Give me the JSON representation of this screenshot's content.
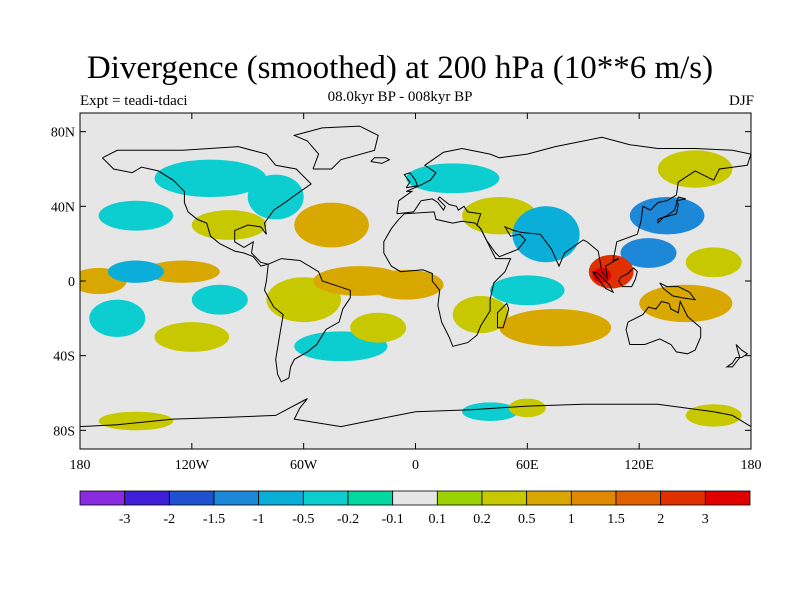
{
  "title": "Divergence (smoothed) at 200 hPa (10**6 m/s)",
  "subtitle": "08.0kyr BP - 008kyr BP",
  "experiment": "Expt = teadi-tdaci",
  "season": "DJF",
  "map": {
    "projection": "cylindrical-equidistant",
    "lon_range": [
      -180,
      180
    ],
    "lat_range": [
      -90,
      90
    ],
    "background_color": "#e6e6e6",
    "lat_ticks": [
      {
        "value": 80,
        "label": "80N"
      },
      {
        "value": 40,
        "label": "40N"
      },
      {
        "value": 0,
        "label": "0"
      },
      {
        "value": -40,
        "label": "40S"
      },
      {
        "value": -80,
        "label": "80S"
      }
    ],
    "lon_ticks": [
      {
        "value": -180,
        "label": "180"
      },
      {
        "value": -120,
        "label": "120W"
      },
      {
        "value": -60,
        "label": "60W"
      },
      {
        "value": 0,
        "label": "0"
      },
      {
        "value": 60,
        "label": "60E"
      },
      {
        "value": 120,
        "label": "120E"
      },
      {
        "value": 180,
        "label": "180"
      }
    ],
    "anomalies": [
      {
        "lon": 105,
        "lat": 5,
        "rlon": 12,
        "rlat": 9,
        "v": 2.2
      },
      {
        "lon": 100,
        "lat": 3,
        "rlon": 5,
        "rlat": 4,
        "v": 3.2
      },
      {
        "lon": 125,
        "lat": 15,
        "rlon": 15,
        "rlat": 8,
        "v": -1.2
      },
      {
        "lon": 135,
        "lat": 35,
        "rlon": 20,
        "rlat": 10,
        "v": -1.3
      },
      {
        "lon": 145,
        "lat": -12,
        "rlon": 25,
        "rlat": 10,
        "v": 0.6
      },
      {
        "lon": 70,
        "lat": 25,
        "rlon": 18,
        "rlat": 15,
        "v": -0.6
      },
      {
        "lon": 45,
        "lat": 35,
        "rlon": 20,
        "rlat": 10,
        "v": 0.4
      },
      {
        "lon": 60,
        "lat": -5,
        "rlon": 20,
        "rlat": 8,
        "v": -0.5
      },
      {
        "lon": 35,
        "lat": -18,
        "rlon": 15,
        "rlat": 10,
        "v": 0.4
      },
      {
        "lon": 75,
        "lat": -25,
        "rlon": 30,
        "rlat": 10,
        "v": 0.5
      },
      {
        "lon": -30,
        "lat": 0,
        "rlon": 25,
        "rlat": 8,
        "v": 0.6
      },
      {
        "lon": -5,
        "lat": -2,
        "rlon": 20,
        "rlat": 8,
        "v": 0.5
      },
      {
        "lon": -60,
        "lat": -10,
        "rlon": 20,
        "rlat": 12,
        "v": 0.4
      },
      {
        "lon": -45,
        "lat": 30,
        "rlon": 20,
        "rlat": 12,
        "v": 0.5
      },
      {
        "lon": -75,
        "lat": 45,
        "rlon": 15,
        "rlat": 12,
        "v": -0.4
      },
      {
        "lon": -125,
        "lat": 5,
        "rlon": 20,
        "rlat": 6,
        "v": 0.5
      },
      {
        "lon": -150,
        "lat": 5,
        "rlon": 15,
        "rlat": 6,
        "v": -0.8
      },
      {
        "lon": -170,
        "lat": 0,
        "rlon": 15,
        "rlat": 7,
        "v": 0.5
      },
      {
        "lon": -160,
        "lat": -20,
        "rlon": 15,
        "rlat": 10,
        "v": -0.4
      },
      {
        "lon": -105,
        "lat": -10,
        "rlon": 15,
        "rlat": 8,
        "v": -0.5
      },
      {
        "lon": -120,
        "lat": -30,
        "rlon": 20,
        "rlat": 8,
        "v": 0.4
      },
      {
        "lon": -40,
        "lat": -35,
        "rlon": 25,
        "rlat": 8,
        "v": -0.3
      },
      {
        "lon": -20,
        "lat": -25,
        "rlon": 15,
        "rlat": 8,
        "v": 0.3
      },
      {
        "lon": 20,
        "lat": 55,
        "rlon": 25,
        "rlat": 8,
        "v": -0.3
      },
      {
        "lon": -110,
        "lat": 55,
        "rlon": 30,
        "rlat": 10,
        "v": -0.3
      },
      {
        "lon": -150,
        "lat": 35,
        "rlon": 20,
        "rlat": 8,
        "v": -0.3
      },
      {
        "lon": -100,
        "lat": 30,
        "rlon": 20,
        "rlat": 8,
        "v": 0.3
      },
      {
        "lon": 150,
        "lat": 60,
        "rlon": 20,
        "rlat": 10,
        "v": 0.3
      },
      {
        "lon": 40,
        "lat": -70,
        "rlon": 15,
        "rlat": 5,
        "v": -0.3
      },
      {
        "lon": 60,
        "lat": -68,
        "rlon": 10,
        "rlat": 5,
        "v": 0.3
      },
      {
        "lon": 160,
        "lat": -72,
        "rlon": 15,
        "rlat": 6,
        "v": 0.3
      },
      {
        "lon": -150,
        "lat": -75,
        "rlon": 20,
        "rlat": 5,
        "v": 0.3
      },
      {
        "lon": 160,
        "lat": 10,
        "rlon": 15,
        "rlat": 8,
        "v": 0.4
      }
    ]
  },
  "colorbar": {
    "colors": [
      "#8a2be2",
      "#3f1fd8",
      "#1e50d0",
      "#1e88d8",
      "#0aaed8",
      "#0ccdd0",
      "#00d8a0",
      "#e6e6e6",
      "#9ad400",
      "#c8c800",
      "#d8a800",
      "#e08800",
      "#e06000",
      "#e03000",
      "#e00000"
    ],
    "labels": [
      "-3",
      "-2",
      "-1.5",
      "-1",
      "-0.5",
      "-0.2",
      "-0.1",
      "0.1",
      "0.2",
      "0.5",
      "1",
      "1.5",
      "2",
      "3"
    ],
    "levels": [
      -3,
      -2,
      -1.5,
      -1,
      -0.5,
      -0.2,
      -0.1,
      0.1,
      0.2,
      0.5,
      1,
      1.5,
      2,
      3
    ]
  }
}
